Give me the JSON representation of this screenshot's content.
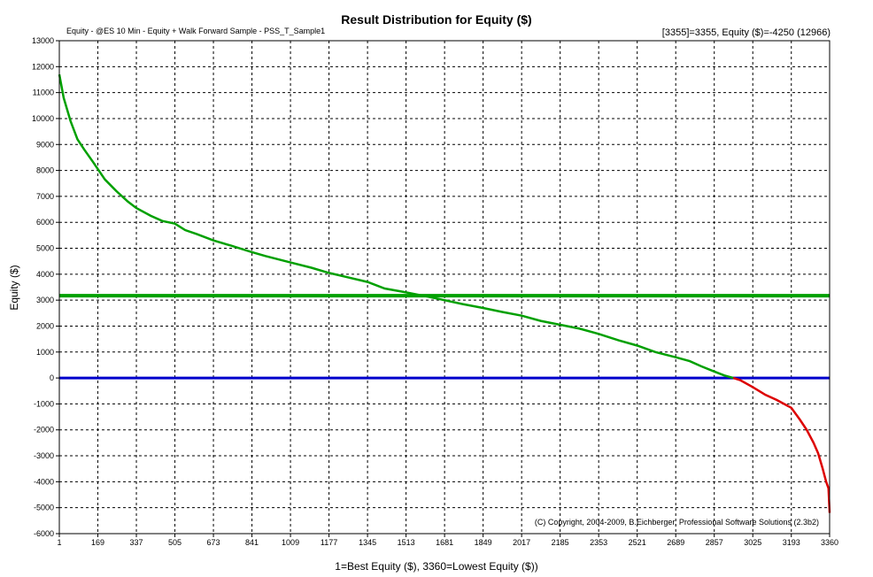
{
  "chart_data": {
    "type": "line",
    "title": "Result Distribution for Equity ($)",
    "subtitle": "Equity - @ES 10 Min - Equity + Walk Forward Sample - PSS_T_Sample1",
    "readout": "[3355]=3355,   Equity ($)=-4250 (12966)",
    "xlabel": "1=Best Equity ($), 3360=Lowest Equity ($))",
    "ylabel": "Equity ($)",
    "copyright": "(C) Copyright, 2004-2009, B.Eichberger, Professional Software Solutions (2.3b2)",
    "xlim": [
      1,
      3360
    ],
    "ylim": [
      -6000,
      13000
    ],
    "x_ticks": [
      1,
      169,
      337,
      505,
      673,
      841,
      1009,
      1177,
      1345,
      1513,
      1681,
      1849,
      2017,
      2185,
      2353,
      2521,
      2689,
      2857,
      3025,
      3193,
      3360
    ],
    "y_ticks": [
      13000,
      12000,
      11000,
      10000,
      9000,
      8000,
      7000,
      6000,
      5000,
      4000,
      3000,
      2000,
      1000,
      0,
      -1000,
      -2000,
      -3000,
      -4000,
      -5000,
      -6000
    ],
    "grid": true,
    "colors": {
      "positive_curve": "#00a000",
      "negative_curve": "#dd0000",
      "average_line": "#00a000",
      "zero_line": "#0000cc",
      "grid": "#000000"
    },
    "reference_lines": [
      {
        "value": 3170,
        "color": "#00a000"
      },
      {
        "value": 0,
        "color": "#0000cc"
      }
    ],
    "series": [
      {
        "x": [
          1,
          20,
          50,
          80,
          110,
          150,
          169,
          200,
          250,
          300,
          337,
          400,
          450,
          505,
          550,
          600,
          673,
          750,
          841,
          900,
          1009,
          1100,
          1177,
          1250,
          1345,
          1420,
          1513,
          1600,
          1681,
          1760,
          1849,
          1930,
          2017,
          2100,
          2185,
          2270,
          2353,
          2440,
          2521,
          2600,
          2689,
          2750,
          2800,
          2857,
          2900,
          2940,
          2970,
          3025,
          3080,
          3130,
          3193,
          3230,
          3260,
          3290,
          3310,
          3330,
          3345,
          3355,
          3360
        ],
        "y": [
          11700,
          10800,
          9900,
          9200,
          8800,
          8300,
          8050,
          7650,
          7200,
          6800,
          6550,
          6250,
          6050,
          5950,
          5700,
          5550,
          5300,
          5100,
          4850,
          4700,
          4450,
          4250,
          4050,
          3900,
          3700,
          3450,
          3300,
          3150,
          3000,
          2850,
          2700,
          2550,
          2400,
          2200,
          2050,
          1900,
          1700,
          1450,
          1250,
          1000,
          800,
          650,
          450,
          250,
          100,
          0,
          -80,
          -350,
          -650,
          -850,
          -1150,
          -1600,
          -2000,
          -2500,
          -2900,
          -3500,
          -4000,
          -4250,
          -5200
        ]
      }
    ]
  }
}
